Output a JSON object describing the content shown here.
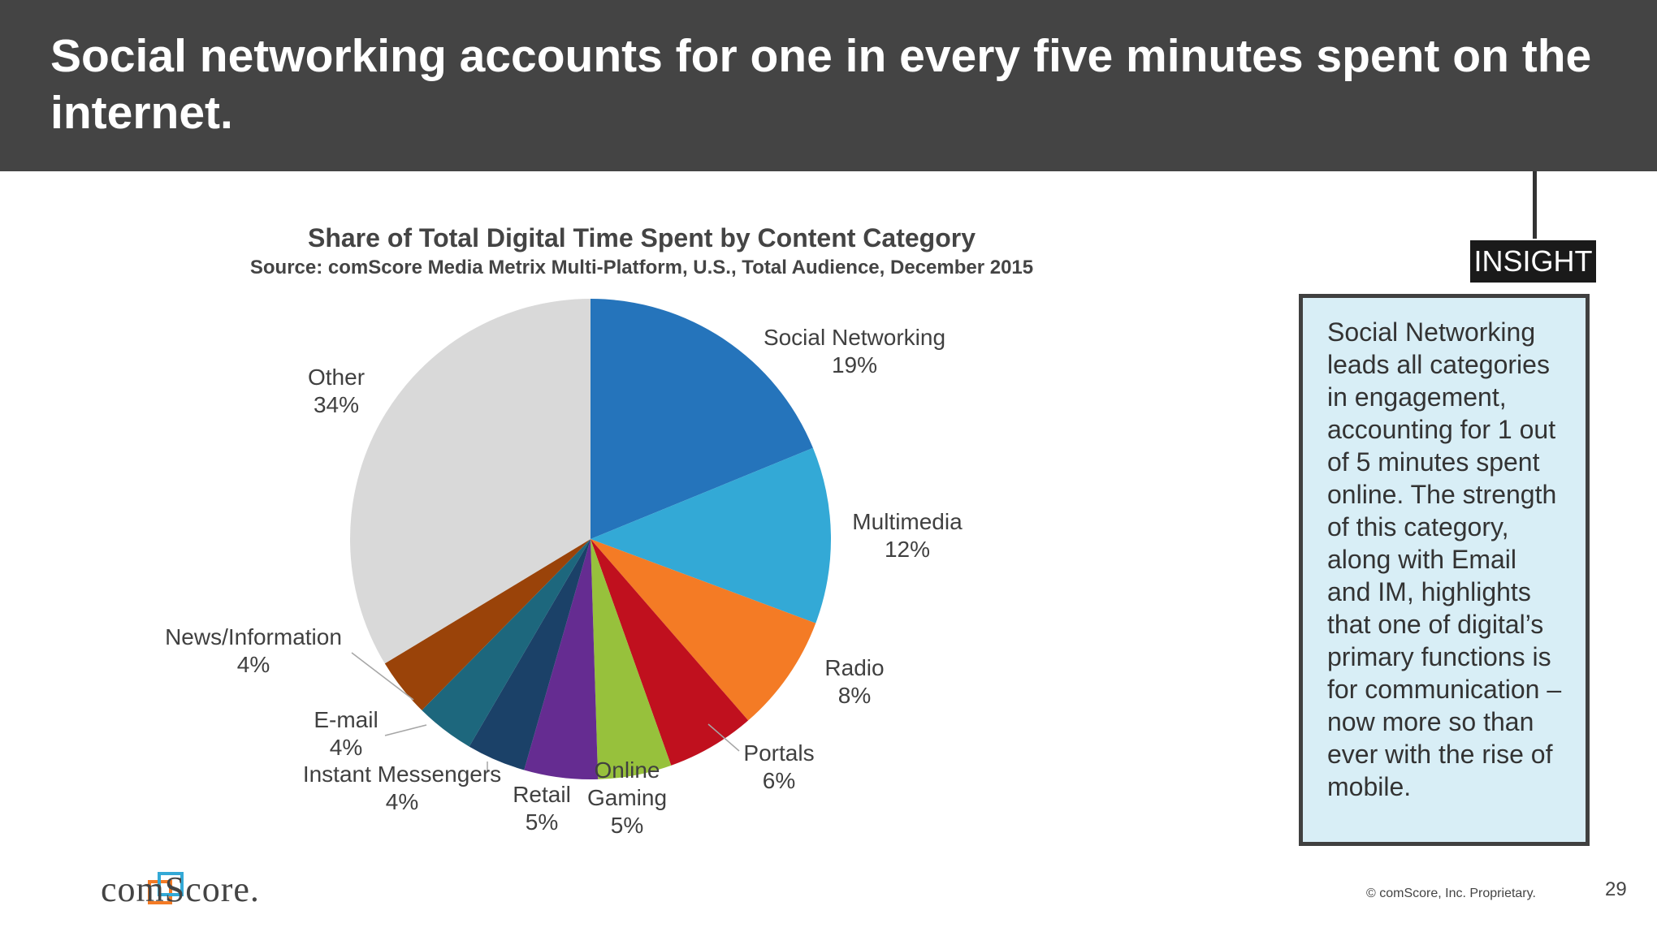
{
  "header": {
    "title": "Social networking accounts for one in every five minutes spent on the internet."
  },
  "chart_data": {
    "type": "pie",
    "title": "Share of Total Digital Time Spent by Content Category",
    "subtitle": "Source: comScore Media Metrix Multi-Platform, U.S., Total Audience, December 2015",
    "slices": [
      {
        "name": "Social Networking",
        "value": 19,
        "label": "19%",
        "color": "#2574bb"
      },
      {
        "name": "Multimedia",
        "value": 12,
        "label": "12%",
        "color": "#33a9d6"
      },
      {
        "name": "Radio",
        "value": 8,
        "label": "8%",
        "color": "#f47b25"
      },
      {
        "name": "Portals",
        "value": 6,
        "label": "6%",
        "color": "#c0101e"
      },
      {
        "name": "Online Gaming",
        "value": 5,
        "label": "5%",
        "color": "#97c13c"
      },
      {
        "name": "Retail",
        "value": 5,
        "label": "5%",
        "color": "#652c91"
      },
      {
        "name": "Instant Messengers",
        "value": 4,
        "label": "4%",
        "color": "#1b4168"
      },
      {
        "name": "E-mail",
        "value": 4,
        "label": "4%",
        "color": "#1d677d"
      },
      {
        "name": "News/Information",
        "value": 4,
        "label": "4%",
        "color": "#9a4309"
      },
      {
        "name": "Other",
        "value": 34,
        "label": "34%",
        "color": "#d9d9d9"
      }
    ]
  },
  "insight": {
    "tag": "INSIGHT",
    "text": "Social Networking leads all categories in engagement, accounting for 1 out of 5 minutes spent online. The strength of this category, along with Email and IM, highlights that one of digital’s primary functions is for communication – now more so than ever with the rise of mobile."
  },
  "footer": {
    "logo_text": "comScore.",
    "copyright": "© comScore, Inc. Proprietary.",
    "page_number": "29"
  }
}
